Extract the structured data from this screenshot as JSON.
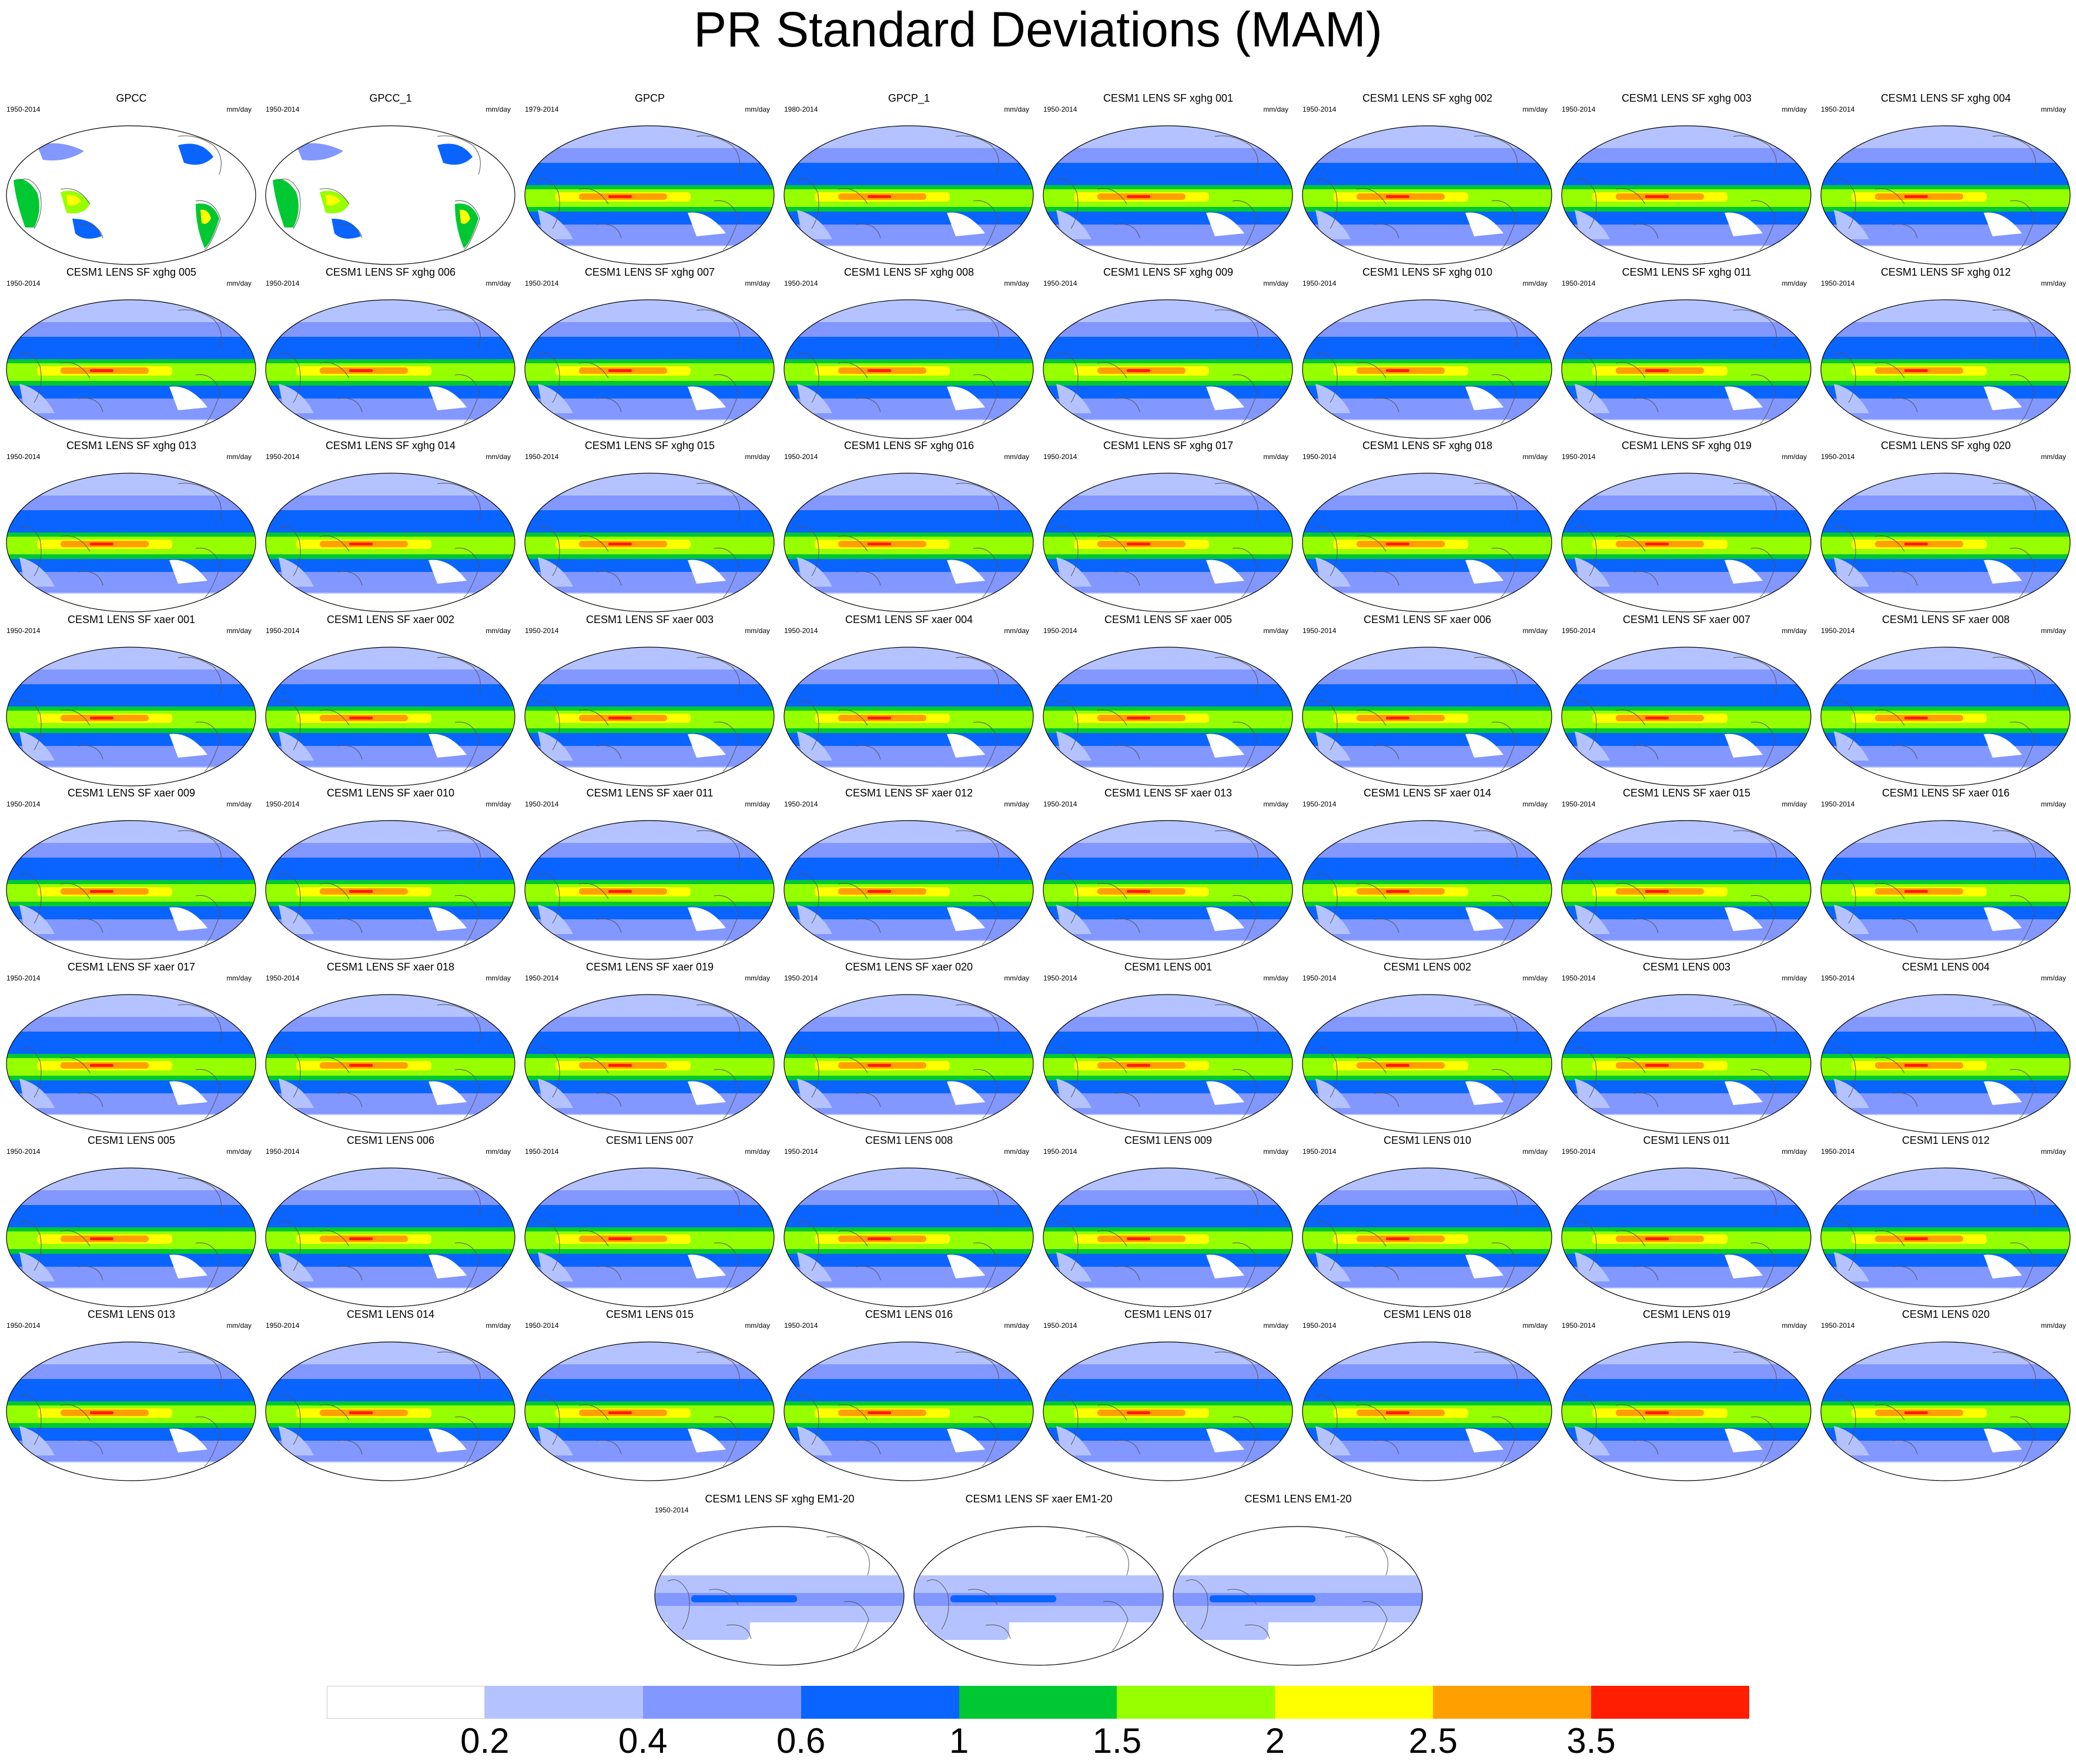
{
  "figure": {
    "title": "PR Standard Deviations (MAM)",
    "units": "mm/day",
    "panels": [
      {
        "title": "GPCC",
        "period": "1950-2014",
        "kind": "land"
      },
      {
        "title": "GPCC_1",
        "period": "1950-2014",
        "kind": "land"
      },
      {
        "title": "GPCP",
        "period": "1979-2014",
        "kind": "full"
      },
      {
        "title": "GPCP_1",
        "period": "1980-2014",
        "kind": "full"
      },
      {
        "title": "CESM1 LENS SF xghg 001",
        "period": "1950-2014",
        "kind": "full"
      },
      {
        "title": "CESM1 LENS SF xghg 002",
        "period": "1950-2014",
        "kind": "full"
      },
      {
        "title": "CESM1 LENS SF xghg 003",
        "period": "1950-2014",
        "kind": "full"
      },
      {
        "title": "CESM1 LENS SF xghg 004",
        "period": "1950-2014",
        "kind": "full"
      },
      {
        "title": "CESM1 LENS SF xghg 005",
        "period": "1950-2014",
        "kind": "full"
      },
      {
        "title": "CESM1 LENS SF xghg 006",
        "period": "1950-2014",
        "kind": "full"
      },
      {
        "title": "CESM1 LENS SF xghg 007",
        "period": "1950-2014",
        "kind": "full"
      },
      {
        "title": "CESM1 LENS SF xghg 008",
        "period": "1950-2014",
        "kind": "full"
      },
      {
        "title": "CESM1 LENS SF xghg 009",
        "period": "1950-2014",
        "kind": "full"
      },
      {
        "title": "CESM1 LENS SF xghg 010",
        "period": "1950-2014",
        "kind": "full"
      },
      {
        "title": "CESM1 LENS SF xghg 011",
        "period": "1950-2014",
        "kind": "full"
      },
      {
        "title": "CESM1 LENS SF xghg 012",
        "period": "1950-2014",
        "kind": "full"
      },
      {
        "title": "CESM1 LENS SF xghg 013",
        "period": "1950-2014",
        "kind": "full"
      },
      {
        "title": "CESM1 LENS SF xghg 014",
        "period": "1950-2014",
        "kind": "full"
      },
      {
        "title": "CESM1 LENS SF xghg 015",
        "period": "1950-2014",
        "kind": "full"
      },
      {
        "title": "CESM1 LENS SF xghg 016",
        "period": "1950-2014",
        "kind": "full"
      },
      {
        "title": "CESM1 LENS SF xghg 017",
        "period": "1950-2014",
        "kind": "full"
      },
      {
        "title": "CESM1 LENS SF xghg 018",
        "period": "1950-2014",
        "kind": "full"
      },
      {
        "title": "CESM1 LENS SF xghg 019",
        "period": "1950-2014",
        "kind": "full"
      },
      {
        "title": "CESM1 LENS SF xghg 020",
        "period": "1950-2014",
        "kind": "full"
      },
      {
        "title": "CESM1 LENS SF xaer 001",
        "period": "1950-2014",
        "kind": "full"
      },
      {
        "title": "CESM1 LENS SF xaer 002",
        "period": "1950-2014",
        "kind": "full"
      },
      {
        "title": "CESM1 LENS SF xaer 003",
        "period": "1950-2014",
        "kind": "full"
      },
      {
        "title": "CESM1 LENS SF xaer 004",
        "period": "1950-2014",
        "kind": "full"
      },
      {
        "title": "CESM1 LENS SF xaer 005",
        "period": "1950-2014",
        "kind": "full"
      },
      {
        "title": "CESM1 LENS SF xaer 006",
        "period": "1950-2014",
        "kind": "full"
      },
      {
        "title": "CESM1 LENS SF xaer 007",
        "period": "1950-2014",
        "kind": "full"
      },
      {
        "title": "CESM1 LENS SF xaer 008",
        "period": "1950-2014",
        "kind": "full"
      },
      {
        "title": "CESM1 LENS SF xaer 009",
        "period": "1950-2014",
        "kind": "full"
      },
      {
        "title": "CESM1 LENS SF xaer 010",
        "period": "1950-2014",
        "kind": "full"
      },
      {
        "title": "CESM1 LENS SF xaer 011",
        "period": "1950-2014",
        "kind": "full"
      },
      {
        "title": "CESM1 LENS SF xaer 012",
        "period": "1950-2014",
        "kind": "full"
      },
      {
        "title": "CESM1 LENS SF xaer 013",
        "period": "1950-2014",
        "kind": "full"
      },
      {
        "title": "CESM1 LENS SF xaer 014",
        "period": "1950-2014",
        "kind": "full"
      },
      {
        "title": "CESM1 LENS SF xaer 015",
        "period": "1950-2014",
        "kind": "full"
      },
      {
        "title": "CESM1 LENS SF xaer 016",
        "period": "1950-2014",
        "kind": "full"
      },
      {
        "title": "CESM1 LENS SF xaer 017",
        "period": "1950-2014",
        "kind": "full"
      },
      {
        "title": "CESM1 LENS SF xaer 018",
        "period": "1950-2014",
        "kind": "full"
      },
      {
        "title": "CESM1 LENS SF xaer 019",
        "period": "1950-2014",
        "kind": "full"
      },
      {
        "title": "CESM1 LENS SF xaer 020",
        "period": "1950-2014",
        "kind": "full"
      },
      {
        "title": "CESM1 LENS 001",
        "period": "1950-2014",
        "kind": "full"
      },
      {
        "title": "CESM1 LENS 002",
        "period": "1950-2014",
        "kind": "full"
      },
      {
        "title": "CESM1 LENS 003",
        "period": "1950-2014",
        "kind": "full"
      },
      {
        "title": "CESM1 LENS 004",
        "period": "1950-2014",
        "kind": "full"
      },
      {
        "title": "CESM1 LENS 005",
        "period": "1950-2014",
        "kind": "full"
      },
      {
        "title": "CESM1 LENS 006",
        "period": "1950-2014",
        "kind": "full"
      },
      {
        "title": "CESM1 LENS 007",
        "period": "1950-2014",
        "kind": "full"
      },
      {
        "title": "CESM1 LENS 008",
        "period": "1950-2014",
        "kind": "full"
      },
      {
        "title": "CESM1 LENS 009",
        "period": "1950-2014",
        "kind": "full"
      },
      {
        "title": "CESM1 LENS 010",
        "period": "1950-2014",
        "kind": "full"
      },
      {
        "title": "CESM1 LENS 011",
        "period": "1950-2014",
        "kind": "full"
      },
      {
        "title": "CESM1 LENS 012",
        "period": "1950-2014",
        "kind": "full"
      },
      {
        "title": "CESM1 LENS 013",
        "period": "1950-2014",
        "kind": "full"
      },
      {
        "title": "CESM1 LENS 014",
        "period": "1950-2014",
        "kind": "full"
      },
      {
        "title": "CESM1 LENS 015",
        "period": "1950-2014",
        "kind": "full"
      },
      {
        "title": "CESM1 LENS 016",
        "period": "1950-2014",
        "kind": "full"
      },
      {
        "title": "CESM1 LENS 017",
        "period": "1950-2014",
        "kind": "full"
      },
      {
        "title": "CESM1 LENS 018",
        "period": "1950-2014",
        "kind": "full"
      },
      {
        "title": "CESM1 LENS 019",
        "period": "1950-2014",
        "kind": "full"
      },
      {
        "title": "CESM1 LENS 020",
        "period": "1950-2014",
        "kind": "full"
      },
      {
        "title": "CESM1 LENS SF xghg EM1-20",
        "period": "1950-2014",
        "kind": "ensemble"
      },
      {
        "title": "CESM1 LENS SF xaer EM1-20",
        "period": "",
        "kind": "ensemble"
      },
      {
        "title": "CESM1 LENS EM1-20",
        "period": "",
        "kind": "ensemble"
      }
    ],
    "colorbar": {
      "colors": [
        "#ffffff",
        "#b4c3ff",
        "#8297ff",
        "#0a64ff",
        "#00c832",
        "#96ff00",
        "#ffff00",
        "#ffa000",
        "#ff1e00"
      ],
      "labels": [
        "0.2",
        "0.4",
        "0.6",
        "1",
        "1.5",
        "2",
        "2.5",
        "3.5"
      ]
    }
  }
}
